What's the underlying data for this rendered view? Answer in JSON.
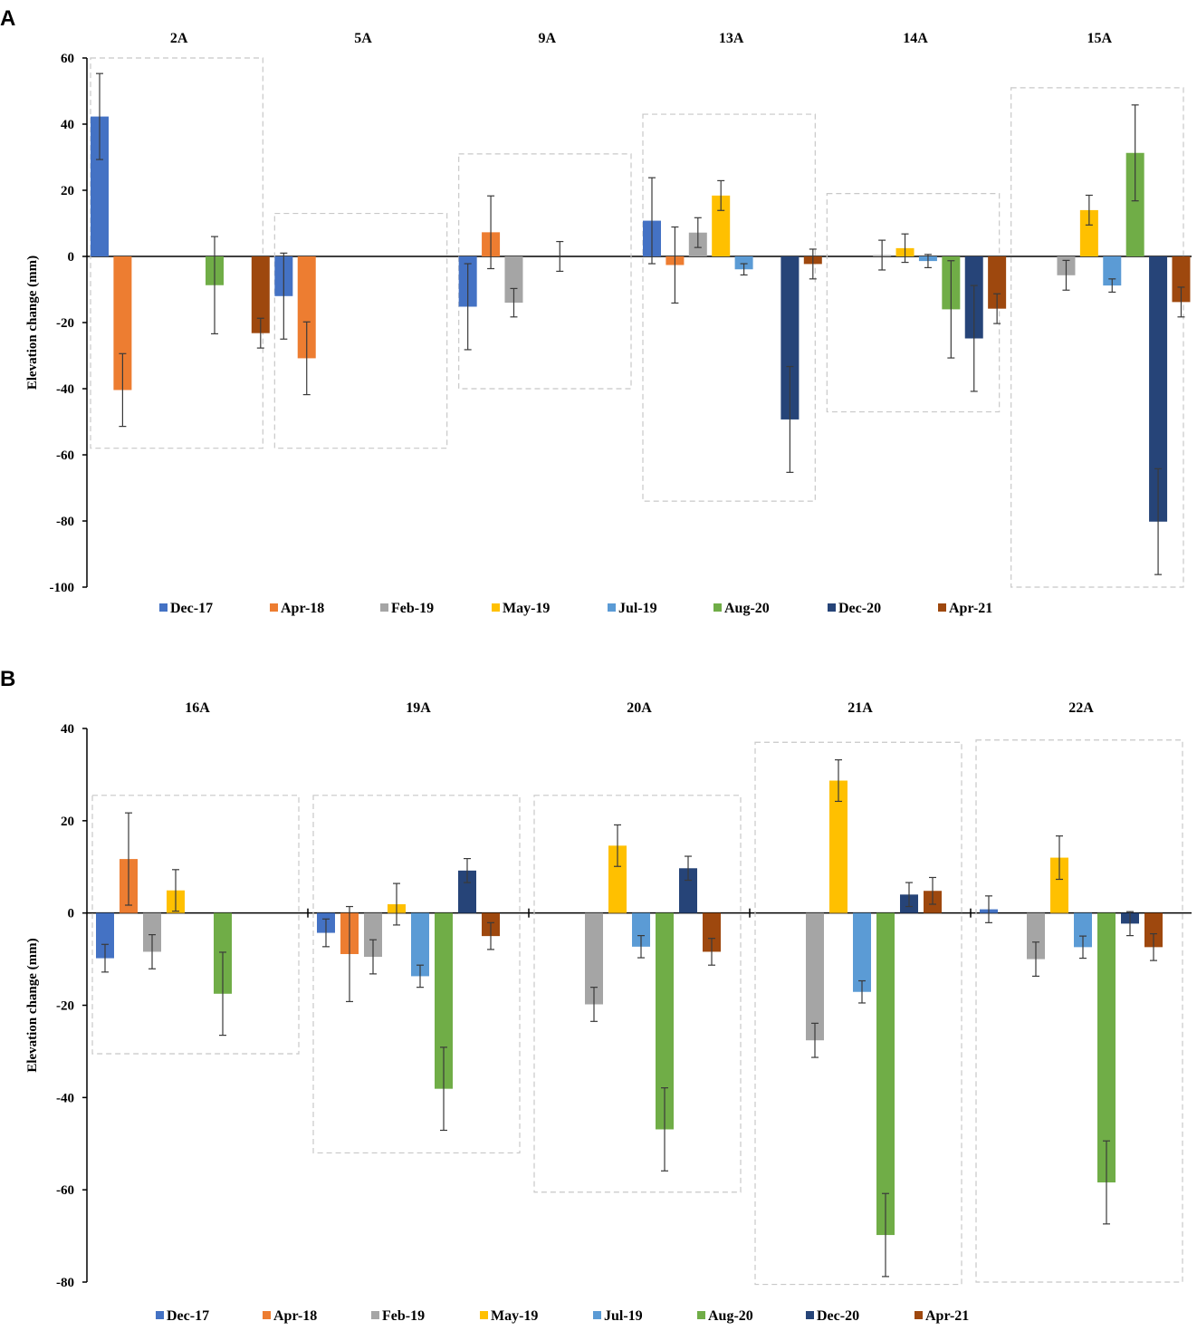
{
  "chart_data": [
    {
      "type": "bar",
      "panel": "A",
      "title": "",
      "xlabel": "",
      "ylabel": "Elevation change (mm)",
      "ylim": [
        -100,
        60
      ],
      "yticks": [
        60,
        40,
        20,
        0,
        -20,
        -40,
        -60,
        -80,
        -100
      ],
      "categories": [
        "2A",
        "5A",
        "9A",
        "13A",
        "14A",
        "15A"
      ],
      "series": [
        {
          "name": "Dec-17",
          "color": "#4472c4",
          "values": [
            42.3,
            -12,
            -15.2,
            10.8,
            0,
            0
          ],
          "errors": [
            13,
            13,
            13,
            13,
            0,
            0
          ]
        },
        {
          "name": "Apr-18",
          "color": "#ed7d31",
          "values": [
            -40.4,
            -30.8,
            7.3,
            -2.6,
            0,
            0
          ],
          "errors": [
            11,
            11,
            11,
            11.5,
            0,
            0
          ]
        },
        {
          "name": "Feb-19",
          "color": "#a5a5a5",
          "values": [
            0,
            0,
            -14,
            7.2,
            0.4,
            -5.7
          ],
          "errors": [
            0,
            0,
            4.3,
            4.5,
            4.5,
            4.5
          ]
        },
        {
          "name": "May-19",
          "color": "#ffc000",
          "values": [
            0,
            0,
            0,
            18.4,
            2.5,
            14
          ],
          "errors": [
            0,
            0,
            0,
            4.5,
            4.3,
            4.5
          ]
        },
        {
          "name": "Jul-19",
          "color": "#5b9bd5",
          "values": [
            0,
            0,
            0,
            -3.9,
            -1.4,
            -8.8
          ],
          "errors": [
            0,
            0,
            4.5,
            1.7,
            2,
            2
          ]
        },
        {
          "name": "Aug-20",
          "color": "#70ad47",
          "values": [
            -8.7,
            0,
            0,
            0,
            -16,
            31.3
          ],
          "errors": [
            14.7,
            0,
            0,
            0,
            14.7,
            14.5
          ]
        },
        {
          "name": "Dec-20",
          "color": "#264478",
          "values": [
            0,
            0,
            0,
            -49.3,
            -24.8,
            -80.2
          ],
          "errors": [
            0,
            0,
            0,
            16,
            16,
            16
          ]
        },
        {
          "name": "Apr-21",
          "color": "#9e480e",
          "values": [
            -23.2,
            0,
            0,
            -2.3,
            -15.8,
            -13.8
          ],
          "errors": [
            4.5,
            0,
            0,
            4.5,
            4.5,
            4.5
          ]
        }
      ],
      "group_boxes": [
        {
          "category": "2A",
          "range": [
            -58,
            60
          ]
        },
        {
          "category": "5A",
          "range": [
            -58,
            13
          ]
        },
        {
          "category": "9A",
          "range": [
            -40,
            31
          ]
        },
        {
          "category": "13A",
          "range": [
            -74,
            43
          ]
        },
        {
          "category": "14A",
          "range": [
            -47,
            19
          ]
        },
        {
          "category": "15A",
          "range": [
            -100,
            51
          ]
        }
      ],
      "legend": "bottom"
    },
    {
      "type": "bar",
      "panel": "B",
      "title": "",
      "xlabel": "",
      "ylabel": "Elevation change (mm)",
      "ylim": [
        -80,
        40
      ],
      "yticks": [
        40,
        20,
        0,
        -20,
        -40,
        -60,
        -80
      ],
      "categories": [
        "16A",
        "19A",
        "20A",
        "21A",
        "22A"
      ],
      "series": [
        {
          "name": "Dec-17",
          "color": "#4472c4",
          "values": [
            -9.8,
            -4.3,
            0,
            0,
            0.8
          ],
          "errors": [
            3,
            3,
            0,
            0,
            2.9
          ]
        },
        {
          "name": "Apr-18",
          "color": "#ed7d31",
          "values": [
            11.7,
            -8.9,
            0,
            0,
            0
          ],
          "errors": [
            10,
            10.3,
            0,
            0,
            0
          ]
        },
        {
          "name": "Feb-19",
          "color": "#a5a5a5",
          "values": [
            -8.4,
            -9.5,
            -19.8,
            -27.6,
            -10
          ],
          "errors": [
            3.7,
            3.7,
            3.7,
            3.7,
            3.7
          ]
        },
        {
          "name": "May-19",
          "color": "#ffc000",
          "values": [
            4.9,
            1.9,
            14.6,
            28.7,
            12
          ],
          "errors": [
            4.5,
            4.5,
            4.5,
            4.5,
            4.7
          ]
        },
        {
          "name": "Jul-19",
          "color": "#5b9bd5",
          "values": [
            0,
            -13.7,
            -7.3,
            -17.1,
            -7.4
          ],
          "errors": [
            0,
            2.4,
            2.4,
            2.4,
            2.4
          ]
        },
        {
          "name": "Aug-20",
          "color": "#70ad47",
          "values": [
            -17.5,
            -38.1,
            -46.9,
            -69.8,
            -58.4
          ],
          "errors": [
            9,
            9,
            9,
            9,
            9
          ]
        },
        {
          "name": "Dec-20",
          "color": "#264478",
          "values": [
            0,
            9.2,
            9.7,
            4,
            -2.3
          ],
          "errors": [
            0,
            2.6,
            2.6,
            2.6,
            2.6
          ]
        },
        {
          "name": "Apr-21",
          "color": "#9e480e",
          "values": [
            0,
            -5,
            -8.4,
            4.8,
            -7.4
          ],
          "errors": [
            0,
            2.9,
            2.9,
            2.9,
            2.9
          ]
        }
      ],
      "group_boxes": [
        {
          "category": "16A",
          "range": [
            -30.5,
            25.5
          ]
        },
        {
          "category": "19A",
          "range": [
            -52,
            25.5
          ]
        },
        {
          "category": "20A",
          "range": [
            -60.5,
            25.5
          ]
        },
        {
          "category": "21A",
          "range": [
            -80.5,
            37
          ]
        },
        {
          "category": "22A",
          "range": [
            -80,
            37.5
          ]
        }
      ],
      "legend": "bottom"
    }
  ]
}
